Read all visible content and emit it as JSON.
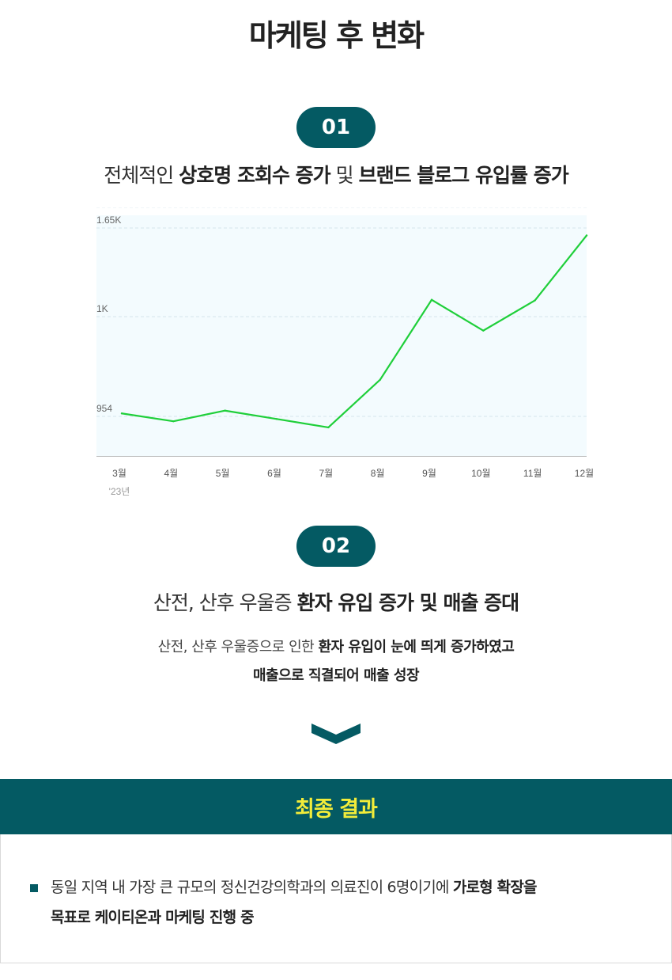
{
  "page_title": "마케팅 후 변화",
  "section1": {
    "badge": "01",
    "headline": {
      "t1": "전체적인 ",
      "b1": "상호명 조회수 증가",
      "t2": " 및 ",
      "b2": "브랜드 블로그 유입률 증가"
    }
  },
  "section2": {
    "badge": "02",
    "headline": {
      "t1": "산전, 산후 우울증 ",
      "b1": "환자 유입 증가 및 매출 증대"
    },
    "desc": {
      "t1": "산전, 산후 우울증으로 인한 ",
      "b1": "환자 유입이 눈에 띄게 증가하였고",
      "line2": "매출으로 직결되어 매출 성장"
    }
  },
  "result": {
    "title": "최종 결과",
    "line1_text": "동일 지역 내 가장 큰 규모의 정신건강의학과의 의료진이 6명이기에 ",
    "line1_bold": "가로형 확장을",
    "line2_bold": "목표로 케이티온과 마케팅 진행 중"
  },
  "colors": {
    "accent": "#045a63",
    "line": "#1fcf3a",
    "plot_bg": "#f3fbfe",
    "result_title": "#f2ec3a"
  },
  "icons": {
    "scroll_down": "chevron-down-icon"
  },
  "chart_data": {
    "type": "line",
    "categories": [
      "3월",
      "4월",
      "5월",
      "6월",
      "7월",
      "8월",
      "9월",
      "10월",
      "11월",
      "12월"
    ],
    "year_label": "'23년",
    "series": [
      {
        "values": [
          976,
          962,
          981,
          966,
          951,
          1036,
          1179,
          1124,
          1178,
          1294
        ]
      }
    ],
    "yticks": [
      {
        "value": 954,
        "label": "954"
      },
      {
        "value": 1000,
        "label": "1K"
      },
      {
        "value": 1650,
        "label": "1.65K"
      }
    ],
    "ylim": [
      900,
      1330
    ],
    "xlabel": "",
    "ylabel": "",
    "grid": true
  }
}
